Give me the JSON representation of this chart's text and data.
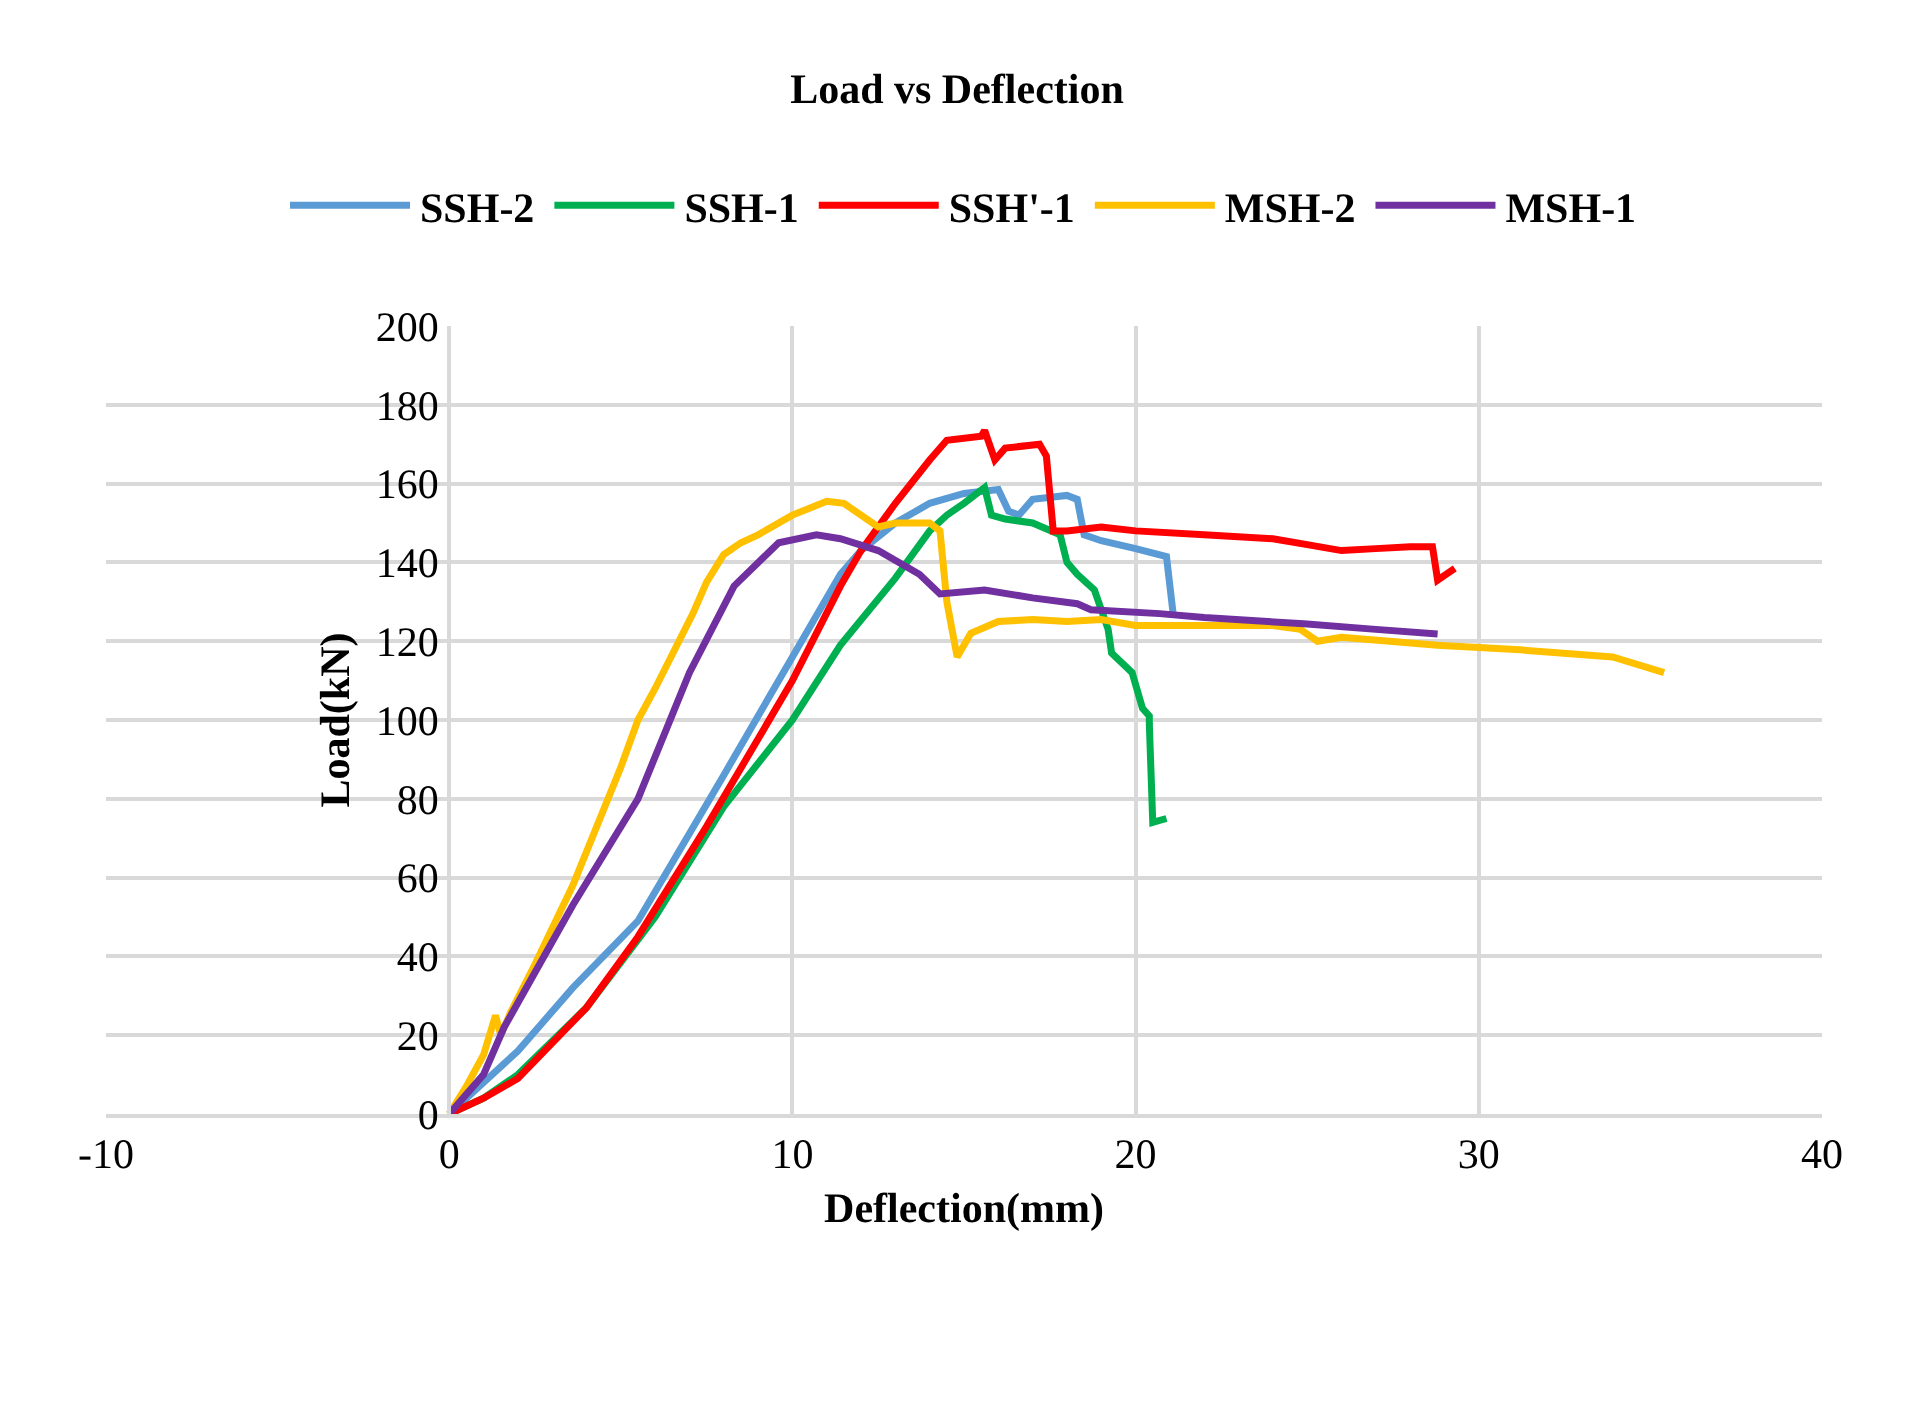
{
  "chart_data": {
    "type": "line",
    "title": "Load vs Deflection",
    "xlabel": "Deflection(mm)",
    "ylabel": "Load(kN)",
    "xlim": [
      -10,
      40
    ],
    "xticks": [
      -10,
      0,
      10,
      20,
      30,
      40
    ],
    "ylim": [
      0,
      200
    ],
    "yticks": [
      0,
      20,
      40,
      60,
      80,
      100,
      120,
      140,
      160,
      180,
      200
    ],
    "grid": true,
    "legend": "top",
    "marker": "none",
    "line_style": "solid",
    "series": [
      {
        "name": "SSH-2",
        "color": "#5b9bd5",
        "x": [
          0,
          2,
          3.6,
          5.5,
          8,
          10,
          11.4,
          12,
          13,
          14,
          15,
          16,
          16.3,
          16.6,
          17,
          18,
          18.3,
          18.5,
          19,
          20,
          20.9,
          21.1
        ],
        "values": [
          0,
          16,
          32,
          49,
          86,
          116,
          137,
          143,
          150,
          155,
          157.5,
          158.5,
          153,
          152,
          156,
          157,
          156,
          147,
          145.5,
          143.5,
          141.5,
          126.5
        ]
      },
      {
        "name": "SSH-1",
        "color": "#00b050",
        "x": [
          0,
          1,
          2,
          4,
          6,
          8,
          10,
          11.4,
          13,
          14,
          14.5,
          15,
          15.6,
          15.8,
          16.2,
          17,
          17.8,
          18,
          18.3,
          18.8,
          19.2,
          19.3,
          19.9,
          20.2,
          20.4,
          20.4,
          20.5,
          20.9
        ],
        "values": [
          0,
          4,
          10,
          27,
          50,
          78,
          100,
          119,
          136,
          148,
          152,
          155,
          159,
          152,
          151,
          150,
          147,
          140,
          137,
          133,
          123,
          117,
          112,
          103,
          101,
          99,
          74,
          75
        ]
      },
      {
        "name": "SSH'-1",
        "color": "#ff0000",
        "x": [
          0,
          1,
          2,
          4,
          5.5,
          7.5,
          10,
          11.4,
          12,
          13,
          14,
          14.5,
          15.5,
          15.6,
          15.9,
          16.2,
          17.2,
          17.4,
          17.6,
          18,
          19,
          20,
          22,
          24,
          25,
          26,
          27,
          28,
          28.65,
          28.8,
          29.3
        ],
        "values": [
          0,
          4,
          9,
          27,
          45,
          73,
          110,
          134,
          143,
          155,
          166,
          171,
          172,
          173.5,
          166,
          169,
          170,
          167,
          148,
          148,
          149,
          148,
          147,
          146,
          144.5,
          143,
          143.5,
          144,
          144,
          135.5,
          138.5
        ]
      },
      {
        "name": "MSH-2",
        "color": "#ffc000",
        "x": [
          0,
          0.5,
          1,
          1.35,
          1.5,
          1.8,
          2.5,
          3.6,
          5,
          5.5,
          6,
          7.1,
          7.5,
          8,
          8.5,
          9,
          10,
          11,
          11.5,
          12,
          12.5,
          13,
          14,
          14.3,
          14.5,
          14.8,
          15.2,
          16,
          17,
          18,
          19,
          20,
          21,
          22,
          24,
          24.8,
          25.3,
          26,
          28.8,
          31.2,
          33.9,
          35.4
        ],
        "values": [
          0,
          7,
          15,
          25,
          20,
          26,
          38,
          58,
          88,
          100,
          108,
          127,
          135,
          142,
          145,
          147,
          152,
          155.5,
          155,
          152,
          149,
          150,
          150,
          148,
          130,
          116,
          122,
          125,
          125.5,
          125,
          125.5,
          124,
          124,
          124,
          124,
          123,
          120,
          121,
          119,
          117.8,
          116,
          112
        ]
      },
      {
        "name": "MSH-1",
        "color": "#7030a0",
        "x": [
          0,
          1,
          1.6,
          3.6,
          5.5,
          7,
          8.3,
          9.6,
          10.7,
          11.4,
          12.5,
          13.7,
          14.3,
          15.6,
          17,
          18.3,
          18.7,
          20.7,
          22,
          24.9,
          27,
          28.8
        ],
        "values": [
          0,
          10,
          22,
          53,
          80,
          112,
          134,
          145,
          147,
          146,
          143,
          137,
          132,
          133,
          131,
          129.5,
          128,
          127,
          126,
          124.4,
          123,
          121.8
        ]
      }
    ]
  }
}
